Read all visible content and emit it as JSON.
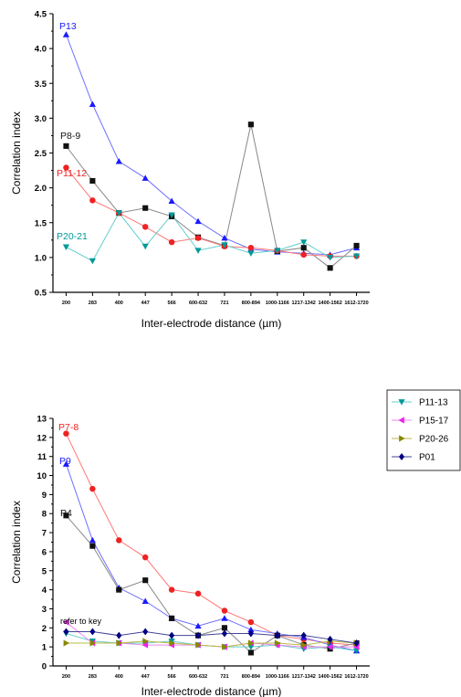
{
  "chart_data": [
    {
      "type": "line",
      "title": "",
      "xlabel": "Inter-electrode distance (µm)",
      "ylabel": "Correlation index",
      "categories": [
        "200",
        "283",
        "400",
        "447",
        "566",
        "600-632",
        "721",
        "800-894",
        "1000-1166",
        "1217-1342",
        "1400-1562",
        "1612-1720"
      ],
      "yticks": [
        "0.5",
        "1.0",
        "1.5",
        "2.0",
        "2.5",
        "3.0",
        "3.5",
        "4.0",
        "4.5"
      ],
      "ylim": [
        0.5,
        4.5
      ],
      "grid": false,
      "series": [
        {
          "name": "P13",
          "color": "#1a1aff",
          "line_color": "#6f6fff",
          "marker": "triangle-up",
          "values": [
            4.2,
            3.2,
            2.38,
            2.14,
            1.81,
            1.52,
            1.28,
            1.12,
            1.08,
            1.06,
            1.04,
            1.14
          ]
        },
        {
          "name": "P8-9",
          "color": "#111111",
          "line_color": "#888888",
          "marker": "square",
          "values": [
            2.6,
            2.1,
            1.64,
            1.71,
            1.59,
            1.29,
            1.17,
            2.91,
            1.09,
            1.14,
            0.85,
            1.17
          ]
        },
        {
          "name": "P11-12",
          "color": "#ee2222",
          "line_color": "#ff7777",
          "marker": "circle",
          "values": [
            2.29,
            1.82,
            1.64,
            1.44,
            1.22,
            1.28,
            1.16,
            1.14,
            1.1,
            1.04,
            1.02,
            1.02
          ]
        },
        {
          "name": "P20-21",
          "color": "#009999",
          "line_color": "#66cccc",
          "marker": "triangle-down",
          "values": [
            1.15,
            0.95,
            1.64,
            1.16,
            1.61,
            1.1,
            1.18,
            1.06,
            1.1,
            1.22,
            1.0,
            1.02
          ]
        }
      ],
      "series_labels": [
        "P13",
        "P8-9",
        "P11-12",
        "P20-21"
      ]
    },
    {
      "type": "line",
      "title": "",
      "xlabel": "Inter-electrode distance (µm)",
      "ylabel": "Correlation index",
      "categories": [
        "200",
        "283",
        "400",
        "447",
        "566",
        "600-632",
        "721",
        "800-894",
        "1000-1166",
        "1217-1342",
        "1400-1562",
        "1612-1720"
      ],
      "yticks": [
        "0",
        "1",
        "2",
        "3",
        "4",
        "5",
        "6",
        "7",
        "8",
        "9",
        "10",
        "11",
        "12",
        "13"
      ],
      "ylim": [
        0,
        13
      ],
      "grid": false,
      "legend_position": "top-right",
      "legend": [
        "P11-13",
        "P15-17",
        "P20-26",
        "P01"
      ],
      "annotation": "refer to key",
      "series": [
        {
          "name": "P7-8",
          "color": "#ee2222",
          "line_color": "#ff7777",
          "marker": "circle",
          "values": [
            12.2,
            9.3,
            6.6,
            5.7,
            4.0,
            3.8,
            2.9,
            2.3,
            1.6,
            1.4,
            1.2,
            1.1
          ]
        },
        {
          "name": "P9",
          "color": "#1a1aff",
          "line_color": "#6f6fff",
          "marker": "triangle-up",
          "values": [
            10.6,
            6.6,
            4.1,
            3.4,
            2.5,
            2.1,
            2.5,
            1.9,
            1.7,
            1.5,
            1.1,
            0.8
          ]
        },
        {
          "name": "P4",
          "color": "#111111",
          "line_color": "#888888",
          "marker": "square",
          "values": [
            7.9,
            6.3,
            4.0,
            4.5,
            2.5,
            1.6,
            2.0,
            0.7,
            1.6,
            1.1,
            0.9,
            1.2
          ]
        },
        {
          "name": "P11-13",
          "color": "#009999",
          "line_color": "#66cccc",
          "marker": "triangle-down",
          "values": [
            1.7,
            1.3,
            1.2,
            1.2,
            1.3,
            1.1,
            1.0,
            1.0,
            1.1,
            0.9,
            1.0,
            0.8
          ]
        },
        {
          "name": "P15-17",
          "color": "#ee22ee",
          "line_color": "#ee88ee",
          "marker": "triangle-left",
          "values": [
            2.3,
            1.2,
            1.2,
            1.1,
            1.1,
            1.1,
            1.0,
            1.2,
            1.1,
            1.0,
            1.0,
            1.0
          ]
        },
        {
          "name": "P20-26",
          "color": "#888800",
          "line_color": "#bbbb44",
          "marker": "triangle-right",
          "values": [
            1.2,
            1.2,
            1.2,
            1.3,
            1.2,
            1.1,
            1.0,
            1.2,
            1.2,
            1.1,
            1.3,
            1.2
          ]
        },
        {
          "name": "P01",
          "color": "#000080",
          "line_color": "#444499",
          "marker": "diamond",
          "values": [
            1.8,
            1.8,
            1.6,
            1.8,
            1.6,
            1.6,
            1.7,
            1.7,
            1.6,
            1.6,
            1.4,
            1.2
          ]
        }
      ],
      "series_labels": [
        "P7-8",
        "P9",
        "P4"
      ]
    }
  ]
}
